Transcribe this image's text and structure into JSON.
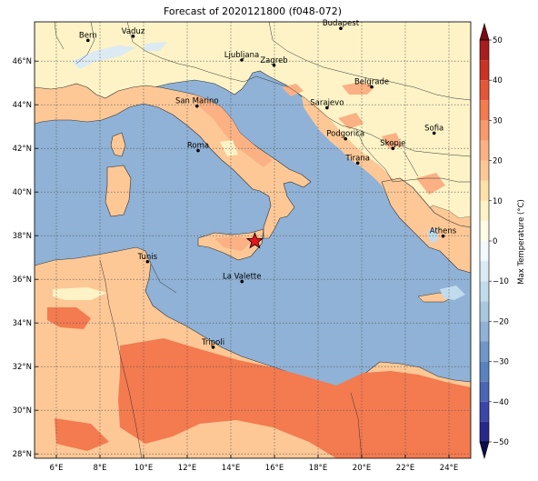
{
  "title": "Forecast of 2020121800 (f048-072)",
  "map": {
    "lon_range": [
      5,
      25
    ],
    "lat_range": [
      27.8,
      47.8
    ],
    "lon_ticks": [
      {
        "value": 6,
        "label": "6°E"
      },
      {
        "value": 8,
        "label": "8°E"
      },
      {
        "value": 10,
        "label": "10°E"
      },
      {
        "value": 12,
        "label": "12°E"
      },
      {
        "value": 14,
        "label": "14°E"
      },
      {
        "value": 16,
        "label": "16°E"
      },
      {
        "value": 18,
        "label": "18°E"
      },
      {
        "value": 20,
        "label": "20°E"
      },
      {
        "value": 22,
        "label": "22°E"
      },
      {
        "value": 24,
        "label": "24°E"
      }
    ],
    "lat_ticks": [
      {
        "value": 28,
        "label": "28°N"
      },
      {
        "value": 30,
        "label": "30°N"
      },
      {
        "value": 32,
        "label": "32°N"
      },
      {
        "value": 34,
        "label": "34°N"
      },
      {
        "value": 36,
        "label": "36°N"
      },
      {
        "value": 38,
        "label": "38°N"
      },
      {
        "value": 40,
        "label": "40°N"
      },
      {
        "value": 42,
        "label": "42°N"
      },
      {
        "value": 44,
        "label": "44°N"
      },
      {
        "value": 46,
        "label": "46°N"
      }
    ],
    "gridlines": true,
    "sea_color": "#8fb2d6",
    "cities": [
      {
        "name": "Bern",
        "lon": 7.45,
        "lat": 46.95
      },
      {
        "name": "Vaduz",
        "lon": 9.52,
        "lat": 47.14
      },
      {
        "name": "Budapest",
        "lon": 19.04,
        "lat": 47.5
      },
      {
        "name": "Ljubljana",
        "lon": 14.5,
        "lat": 46.05
      },
      {
        "name": "Zagreb",
        "lon": 15.98,
        "lat": 45.81
      },
      {
        "name": "Belgrade",
        "lon": 20.46,
        "lat": 44.82
      },
      {
        "name": "San Marino",
        "lon": 12.45,
        "lat": 43.94
      },
      {
        "name": "Sarajevo",
        "lon": 18.41,
        "lat": 43.86
      },
      {
        "name": "Sofia",
        "lon": 23.32,
        "lat": 42.7
      },
      {
        "name": "Podgorica",
        "lon": 19.26,
        "lat": 42.44
      },
      {
        "name": "Skopje",
        "lon": 21.43,
        "lat": 42.0
      },
      {
        "name": "Roma",
        "lon": 12.5,
        "lat": 41.9
      },
      {
        "name": "Tirana",
        "lon": 19.82,
        "lat": 41.33
      },
      {
        "name": "Athens",
        "lon": 23.73,
        "lat": 37.98
      },
      {
        "name": "Tunis",
        "lon": 10.18,
        "lat": 36.81
      },
      {
        "name": "La Valette",
        "lon": 14.51,
        "lat": 35.9
      },
      {
        "name": "Tripoli",
        "lon": 13.19,
        "lat": 32.89
      }
    ],
    "marker": {
      "name": "star",
      "lon": 15.1,
      "lat": 37.75,
      "color": "#e8141b"
    }
  },
  "colorbar": {
    "label": "Max Temperature (°C)",
    "ticks": [
      50,
      40,
      30,
      20,
      10,
      0,
      -10,
      -20,
      -30,
      -40,
      -50
    ],
    "levels": [
      -50,
      -45,
      -40,
      -35,
      -30,
      -25,
      -20,
      -15,
      -10,
      -5,
      0,
      5,
      10,
      15,
      20,
      25,
      30,
      35,
      40,
      45,
      50
    ],
    "colors": [
      "#28288c",
      "#3a46a8",
      "#4a66b4",
      "#5a82c0",
      "#6f97c9",
      "#8fb2d6",
      "#a8c8e0",
      "#c0dcec",
      "#dcebf3",
      "#f2f8fb",
      "#fdfbe4",
      "#fdf3c6",
      "#fde1a8",
      "#fdc896",
      "#fbb183",
      "#f89a6a",
      "#f47a4f",
      "#e55637",
      "#cc3223",
      "#a91d1f"
    ],
    "extend_colors": {
      "min": "#0c0c4e",
      "max": "#7a0a14"
    }
  }
}
